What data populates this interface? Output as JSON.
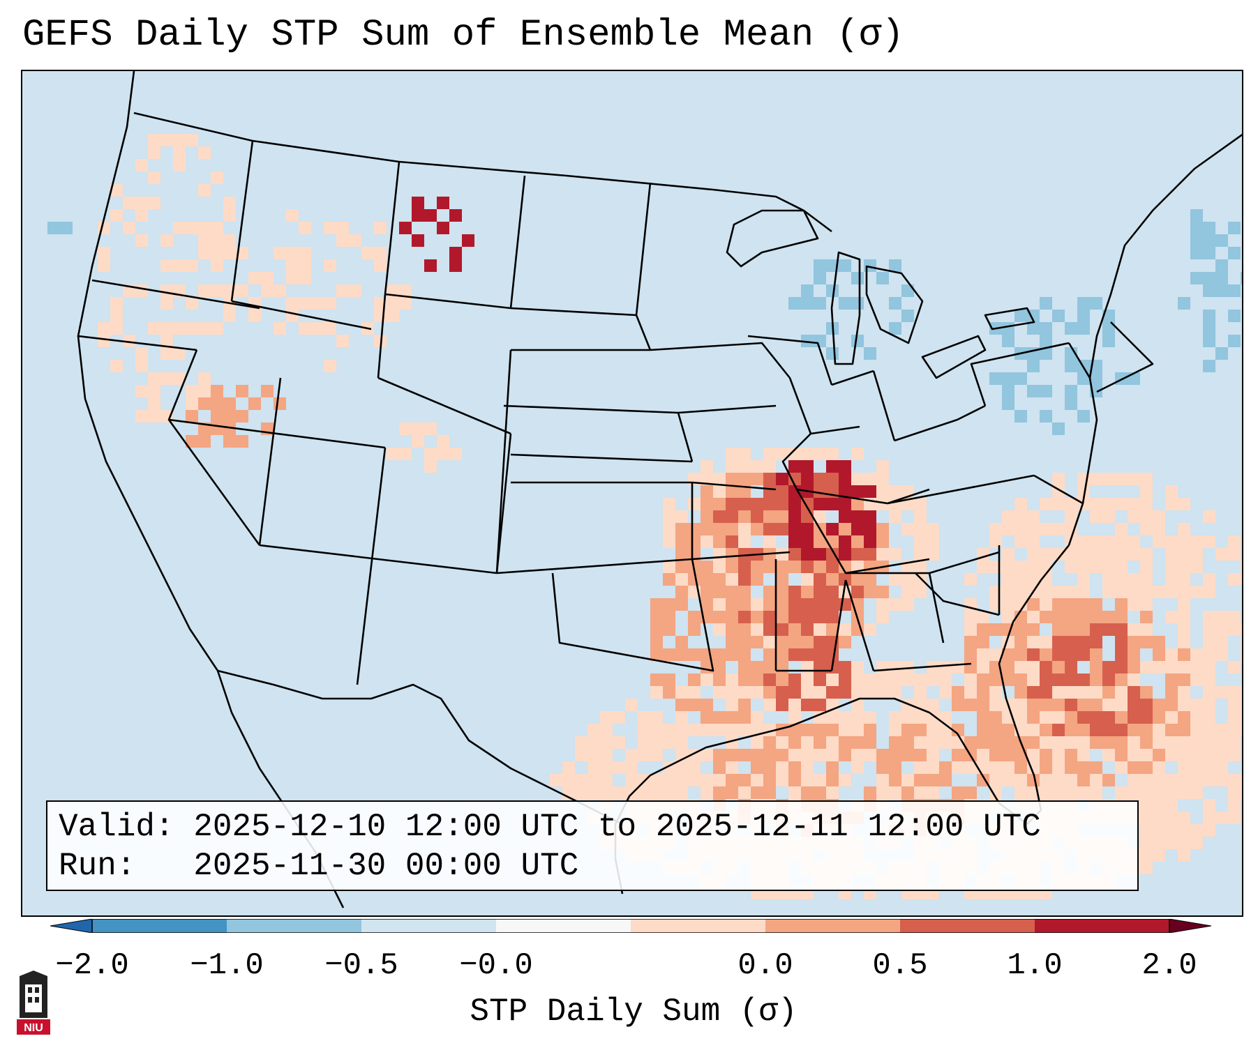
{
  "title": "GEFS Daily STP Sum of Ensemble Mean (σ)",
  "info": {
    "valid": "Valid: 2025-12-10 12:00 UTC to 2025-12-11 12:00 UTC",
    "run": "Run:   2025-11-30 00:00 UTC"
  },
  "colorbar": {
    "label": "STP Daily Sum (σ)",
    "ticks": [
      "−2.0",
      "−1.0",
      "−0.5",
      "−0.0",
      "0.0",
      "0.5",
      "1.0",
      "2.0"
    ],
    "colors": [
      "#4393c3",
      "#92c5de",
      "#d1e5f0",
      "#f7f7f7",
      "#fddbc7",
      "#f4a582",
      "#d6604d",
      "#b2182b"
    ]
  },
  "map_colors": {
    "ocean": "#cfe3f0",
    "light_positive": "#fddbc7",
    "moderate_positive": "#f4a582",
    "strong_positive": "#d6604d",
    "extreme_positive": "#b2182b",
    "negative": "#92c5de"
  },
  "logo": {
    "text": "NIU",
    "color": "#c8102e"
  }
}
